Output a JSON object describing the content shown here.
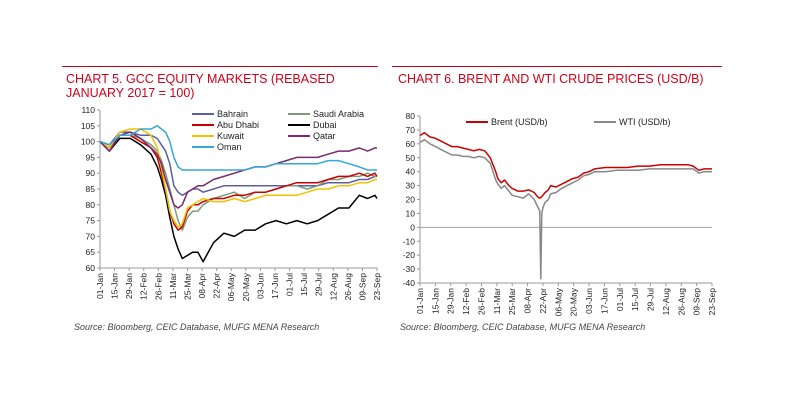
{
  "chart_data": [
    {
      "type": "line",
      "title": "CHART 5. GCC EQUITY MARKETS (REBASED JANUARY 2017 = 100)",
      "source": "Source: Bloomberg, CEIC Database, MUFG MENA Research",
      "ylim": [
        60,
        110
      ],
      "yticks": [
        60,
        65,
        70,
        75,
        80,
        85,
        90,
        95,
        100,
        105,
        110
      ],
      "xlim": [
        1,
        267
      ],
      "x_tick_labels": [
        "01-Jan",
        "15-Jan",
        "29-Jan",
        "12-Feb",
        "26-Feb",
        "11-Mar",
        "25-Mar",
        "08-Apr",
        "22-Apr",
        "06-May",
        "20-May",
        "03-Jun",
        "17-Jun",
        "01-Jul",
        "15-Jul",
        "29-Jul",
        "12-Aug",
        "26-Aug",
        "09-Sep",
        "23-Sep"
      ],
      "x_tick_days": [
        1,
        15,
        29,
        43,
        57,
        71,
        85,
        99,
        113,
        127,
        141,
        155,
        169,
        183,
        197,
        211,
        225,
        239,
        253,
        267
      ],
      "legend_placement": "top",
      "x": [
        1,
        10,
        20,
        30,
        40,
        50,
        56,
        60,
        64,
        68,
        72,
        76,
        80,
        85,
        90,
        95,
        100,
        110,
        120,
        130,
        140,
        150,
        160,
        170,
        180,
        190,
        200,
        210,
        220,
        230,
        240,
        250,
        258,
        265,
        267
      ],
      "series": [
        {
          "name": "Bahrain",
          "color": "#5b5ea6",
          "values": [
            100,
            99,
            103,
            103,
            102,
            102,
            101,
            99,
            97,
            93,
            86,
            84,
            83,
            84,
            85,
            85,
            84,
            85,
            86,
            86,
            86,
            86,
            86,
            86,
            86,
            86,
            86,
            86,
            87,
            87,
            87,
            88,
            88,
            89,
            89
          ]
        },
        {
          "name": "Saudi Arabia",
          "color": "#7c9c7c",
          "values": [
            100,
            98,
            102,
            102,
            101,
            99,
            97,
            94,
            90,
            85,
            80,
            75,
            72,
            76,
            78,
            78,
            80,
            82,
            83,
            84,
            82,
            84,
            84,
            85,
            86,
            86,
            85,
            86,
            88,
            88,
            89,
            89,
            90,
            89,
            89
          ]
        },
        {
          "name": "Abu Dhabi",
          "color": "#cc0000",
          "values": [
            100,
            98,
            102,
            102,
            100,
            98,
            95,
            90,
            85,
            78,
            74,
            72,
            73,
            78,
            80,
            80,
            81,
            82,
            82,
            83,
            83,
            84,
            84,
            85,
            86,
            87,
            87,
            87,
            88,
            89,
            89,
            90,
            89,
            90,
            89
          ]
        },
        {
          "name": "Dubai",
          "color": "#000000",
          "values": [
            100,
            97,
            101,
            101,
            99,
            96,
            92,
            88,
            83,
            76,
            70,
            66,
            63,
            64,
            65,
            65,
            62,
            68,
            71,
            70,
            72,
            72,
            74,
            75,
            74,
            75,
            74,
            75,
            77,
            79,
            79,
            83,
            82,
            83,
            82
          ]
        },
        {
          "name": "Kuwait",
          "color": "#f2c200",
          "values": [
            100,
            98,
            103,
            104,
            104,
            102,
            98,
            92,
            85,
            78,
            75,
            73,
            74,
            79,
            80,
            81,
            82,
            81,
            81,
            82,
            81,
            82,
            83,
            83,
            83,
            83,
            84,
            85,
            85,
            86,
            86,
            87,
            87,
            88,
            88
          ]
        },
        {
          "name": "Qatar",
          "color": "#7b2a6e",
          "values": [
            100,
            97,
            102,
            103,
            101,
            98,
            96,
            93,
            88,
            84,
            80,
            79,
            80,
            84,
            85,
            86,
            86,
            88,
            89,
            90,
            91,
            92,
            92,
            93,
            94,
            95,
            95,
            95,
            96,
            97,
            97,
            98,
            97,
            98,
            98
          ]
        },
        {
          "name": "Oman",
          "color": "#35a7d9",
          "values": [
            100,
            99,
            102,
            102,
            104,
            104,
            105,
            104,
            103,
            100,
            95,
            92,
            91,
            91,
            91,
            91,
            91,
            91,
            91,
            91,
            91,
            92,
            92,
            93,
            93,
            93,
            93,
            93,
            94,
            94,
            93,
            92,
            91,
            91,
            91
          ]
        }
      ]
    },
    {
      "type": "line",
      "title": "CHART 6. BRENT AND WTI CRUDE PRICES (USD/B)",
      "source": "Source: Bloomberg, CEIC Database, MUFG MENA Research",
      "ylim": [
        -40,
        80
      ],
      "yticks": [
        -40,
        -30,
        -20,
        -10,
        0,
        10,
        20,
        30,
        40,
        50,
        60,
        70,
        80
      ],
      "xlim": [
        1,
        267
      ],
      "x_tick_labels": [
        "01-Jan",
        "15-Jan",
        "29-Jan",
        "12-Feb",
        "26-Feb",
        "11-Mar",
        "25-Mar",
        "08-Apr",
        "22-Apr",
        "06-May",
        "20-May",
        "03-Jun",
        "17-Jun",
        "01-Jul",
        "15-Jul",
        "29-Jul",
        "12-Aug",
        "26-Aug",
        "09-Sep",
        "23-Sep"
      ],
      "x_tick_days": [
        1,
        15,
        29,
        43,
        57,
        71,
        85,
        99,
        113,
        127,
        141,
        155,
        169,
        183,
        197,
        211,
        225,
        239,
        253,
        267
      ],
      "legend_placement": "top",
      "series": [
        {
          "name": "Brent (USD/b)",
          "color": "#cc0000",
          "x": [
            1,
            5,
            10,
            15,
            20,
            25,
            30,
            35,
            40,
            45,
            50,
            55,
            60,
            65,
            70,
            72,
            75,
            78,
            82,
            85,
            90,
            95,
            100,
            105,
            108,
            110,
            112,
            115,
            118,
            120,
            125,
            130,
            135,
            140,
            145,
            150,
            155,
            160,
            170,
            180,
            190,
            200,
            210,
            220,
            230,
            240,
            245,
            250,
            255,
            260,
            267
          ],
          "values": [
            66,
            68,
            65,
            64,
            62,
            60,
            58,
            58,
            57,
            56,
            55,
            56,
            55,
            50,
            40,
            35,
            32,
            34,
            30,
            28,
            26,
            26,
            27,
            25,
            22,
            21,
            22,
            25,
            27,
            30,
            29,
            31,
            33,
            35,
            36,
            39,
            40,
            42,
            43,
            43,
            43,
            44,
            44,
            45,
            45,
            45,
            45,
            44,
            41,
            42,
            42
          ]
        },
        {
          "name": "WTI (USD/b)",
          "color": "#888888",
          "x": [
            1,
            5,
            10,
            15,
            20,
            25,
            30,
            35,
            40,
            45,
            50,
            55,
            60,
            65,
            70,
            72,
            75,
            78,
            82,
            85,
            90,
            95,
            100,
            105,
            108,
            110,
            111,
            112,
            113,
            115,
            118,
            120,
            125,
            130,
            135,
            140,
            145,
            150,
            155,
            160,
            170,
            180,
            190,
            200,
            210,
            220,
            230,
            240,
            245,
            250,
            255,
            260,
            267
          ],
          "values": [
            61,
            63,
            60,
            58,
            56,
            54,
            52,
            52,
            51,
            51,
            50,
            51,
            50,
            46,
            34,
            31,
            28,
            30,
            26,
            23,
            22,
            21,
            24,
            20,
            15,
            12,
            -37,
            10,
            14,
            18,
            20,
            24,
            25,
            28,
            30,
            32,
            34,
            37,
            38,
            40,
            40,
            41,
            41,
            41,
            42,
            42,
            42,
            42,
            42,
            42,
            39,
            40,
            40
          ]
        }
      ]
    }
  ]
}
